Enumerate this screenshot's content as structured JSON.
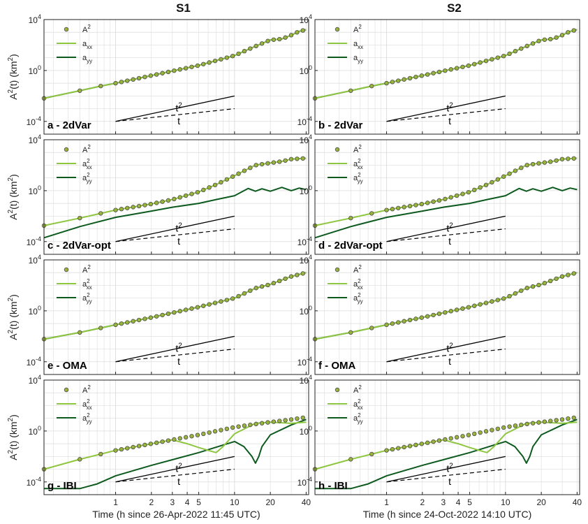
{
  "chart_data": {
    "type": "line",
    "layout": "4 rows x 2 columns of log-log panels",
    "column_titles": [
      "S1",
      "S2"
    ],
    "ylabel_main": "A",
    "ylabel_sup": "2",
    "ylabel_rest": "(t)  (km",
    "ylabel_unit_sup": "2",
    "ylabel_close": ")",
    "xlabels": [
      "Time (h since 26-Apr-2022 11:45 UTC)",
      "Time (h since 24-Oct-2022 14:10 UTC)"
    ],
    "x_scale": "log",
    "y_scale": "log",
    "xlim": [
      0.25,
      42
    ],
    "ylim": [
      1e-05,
      10000
    ],
    "x_ticks": [
      1,
      2,
      3,
      4,
      5,
      10,
      20,
      40
    ],
    "x_tick_labels": [
      "1",
      "2",
      "3",
      "4",
      "5",
      "10",
      "20",
      "40"
    ],
    "y_ticks": [
      0.0001,
      1,
      10000
    ],
    "y_tick_labels": [
      {
        "base": "10",
        "exp": "-4"
      },
      {
        "base": "10",
        "exp": "0"
      },
      {
        "base": "10",
        "exp": "4"
      }
    ],
    "grid": true,
    "legend_placement": "top-left",
    "legend": {
      "A2": {
        "base": "A",
        "sup": "2"
      },
      "axx": {
        "base": "a",
        "sub": "xx"
      },
      "ayy": {
        "base": "a",
        "sub": "yy"
      },
      "axx2": {
        "base": "a",
        "sup": "2",
        "sub": "xx"
      },
      "ayy2": {
        "base": "a",
        "sup": "2",
        "sub": "yy"
      }
    },
    "reference_lines": {
      "x": [
        1,
        10
      ],
      "t2": {
        "label": "t",
        "label_sup": "2",
        "y_at_1": 0.0001,
        "slope": 2,
        "style": "solid"
      },
      "t": {
        "label": "t",
        "y_at_1": 0.0001,
        "slope": 1,
        "style": "dashed"
      }
    },
    "colors": {
      "marker_fill": "#9ab33a",
      "marker_edge": "#4a4a4a",
      "axx": "#8ec63f",
      "ayy": "#0d5a1e",
      "ref": "#000000",
      "grid": "#dcdcdc"
    },
    "panels": [
      {
        "label": "a - 2dVar",
        "row": 0,
        "col": 0,
        "legend": [
          "A2",
          "axx",
          "ayy"
        ],
        "series": {
          "A2": {
            "x": [
              0.25,
              0.5,
              0.75,
              1,
              2,
              5,
              10,
              15,
              20,
              25,
              30,
              35,
              40
            ],
            "y": [
              0.0065,
              0.026,
              0.06,
              0.1,
              0.4,
              2.5,
              15,
              80,
              250,
              300,
              600,
              1200,
              1600
            ]
          },
          "axx": {
            "x": [
              0.25,
              0.5,
              0.75,
              1,
              2,
              5,
              10,
              15,
              20,
              25,
              30,
              35,
              40
            ],
            "y": [
              0.0065,
              0.026,
              0.06,
              0.1,
              0.4,
              2.5,
              15,
              80,
              250,
              300,
              600,
              1200,
              1600
            ]
          },
          "ayy": {
            "x": [
              0.25,
              0.5,
              0.75,
              1,
              2,
              5,
              10,
              15,
              20,
              25,
              30,
              35,
              40
            ],
            "y": [
              0.0065,
              0.026,
              0.06,
              0.1,
              0.4,
              2.5,
              15,
              80,
              250,
              300,
              600,
              1200,
              1600
            ]
          }
        }
      },
      {
        "label": "b - 2dVar",
        "row": 0,
        "col": 1,
        "legend": [
          "A2",
          "axx",
          "ayy"
        ],
        "series": {
          "A2": {
            "x": [
              0.25,
              0.5,
              0.75,
              1,
              2,
              5,
              10,
              15,
              20,
              25,
              30,
              35,
              40
            ],
            "y": [
              0.0065,
              0.026,
              0.06,
              0.1,
              0.4,
              2.5,
              15,
              80,
              250,
              300,
              600,
              1200,
              1600
            ]
          },
          "axx": {
            "x": [
              0.25,
              0.5,
              0.75,
              1,
              2,
              5,
              10,
              15,
              20,
              25,
              30,
              35,
              40
            ],
            "y": [
              0.0065,
              0.026,
              0.06,
              0.1,
              0.4,
              2.5,
              15,
              80,
              250,
              300,
              600,
              1200,
              1600
            ]
          },
          "ayy": {
            "x": [
              0.25,
              0.5,
              0.75,
              1,
              2,
              5,
              10,
              15,
              20,
              25,
              30,
              35,
              40
            ],
            "y": [
              0.0065,
              0.026,
              0.06,
              0.1,
              0.4,
              2.5,
              15,
              80,
              250,
              300,
              600,
              1200,
              1600
            ]
          }
        }
      },
      {
        "label": "c - 2dVar-opt",
        "row": 1,
        "col": 0,
        "legend": [
          "A2",
          "axx2",
          "ayy2"
        ],
        "series": {
          "A2": {
            "x": [
              0.25,
              0.5,
              1,
              2,
              3,
              5,
              7,
              10,
              15,
              20,
              25,
              30,
              40
            ],
            "y": [
              0.0018,
              0.007,
              0.03,
              0.09,
              0.2,
              0.8,
              3,
              15,
              100,
              150,
              200,
              300,
              350
            ]
          },
          "axx": {
            "x": [
              0.25,
              0.5,
              1,
              2,
              3,
              5,
              7,
              10,
              15,
              20,
              25,
              30,
              40
            ],
            "y": [
              0.0018,
              0.007,
              0.03,
              0.09,
              0.2,
              0.8,
              3,
              15,
              100,
              150,
              200,
              300,
              350
            ]
          },
          "ayy": {
            "x": [
              0.25,
              0.5,
              1,
              2,
              3,
              5,
              7,
              10,
              13,
              15,
              17,
              20,
              25,
              30,
              35,
              40
            ],
            "y": [
              0.0002,
              0.0015,
              0.008,
              0.025,
              0.05,
              0.1,
              0.2,
              0.4,
              1.5,
              0.9,
              1.4,
              0.9,
              1.8,
              1.0,
              1.6,
              1.2
            ]
          }
        }
      },
      {
        "label": "d - 2dVar-opt",
        "row": 1,
        "col": 1,
        "legend": [
          "A2",
          "axx2",
          "ayy2"
        ],
        "series": {
          "A2": {
            "x": [
              0.25,
              0.5,
              1,
              2,
              3,
              5,
              7,
              10,
              15,
              20,
              25,
              30,
              40
            ],
            "y": [
              0.0018,
              0.007,
              0.03,
              0.09,
              0.2,
              0.8,
              3,
              15,
              100,
              150,
              200,
              300,
              350
            ]
          },
          "axx": {
            "x": [
              0.25,
              0.5,
              1,
              2,
              3,
              5,
              7,
              10,
              15,
              20,
              25,
              30,
              40
            ],
            "y": [
              0.0018,
              0.007,
              0.03,
              0.09,
              0.2,
              0.8,
              3,
              15,
              100,
              150,
              200,
              300,
              350
            ]
          },
          "ayy": {
            "x": [
              0.25,
              0.5,
              1,
              2,
              3,
              5,
              7,
              10,
              13,
              15,
              17,
              20,
              25,
              30,
              35,
              40
            ],
            "y": [
              0.0002,
              0.0015,
              0.008,
              0.025,
              0.05,
              0.1,
              0.2,
              0.4,
              1.5,
              0.9,
              1.4,
              0.9,
              1.8,
              1.0,
              1.6,
              1.2
            ]
          }
        }
      },
      {
        "label": "e - OMA",
        "row": 2,
        "col": 0,
        "legend": [
          "A2",
          "axx2",
          "ayy2"
        ],
        "series": {
          "A2": {
            "x": [
              0.25,
              0.5,
              1,
              2,
              5,
              10,
              15,
              20,
              30,
              40
            ],
            "y": [
              0.006,
              0.02,
              0.08,
              0.3,
              2,
              10,
              60,
              120,
              500,
              1000
            ]
          },
          "axx": {
            "x": [
              0.25,
              0.5,
              1,
              2,
              5,
              10,
              15,
              20,
              30,
              40
            ],
            "y": [
              0.006,
              0.02,
              0.08,
              0.3,
              2,
              10,
              60,
              120,
              500,
              1000
            ]
          },
          "ayy": {
            "x": [
              0.25,
              0.5,
              1,
              2,
              5,
              10,
              15,
              20,
              30,
              40
            ],
            "y": [
              0.006,
              0.02,
              0.08,
              0.3,
              2,
              10,
              60,
              120,
              500,
              1000
            ]
          }
        }
      },
      {
        "label": "f - OMA",
        "row": 2,
        "col": 1,
        "legend": [
          "A2",
          "axx2",
          "ayy2"
        ],
        "series": {
          "A2": {
            "x": [
              0.25,
              0.5,
              1,
              2,
              5,
              10,
              15,
              20,
              30,
              40
            ],
            "y": [
              0.006,
              0.02,
              0.08,
              0.3,
              2,
              10,
              60,
              120,
              500,
              1000
            ]
          },
          "axx": {
            "x": [
              0.25,
              0.5,
              1,
              2,
              5,
              10,
              15,
              20,
              30,
              40
            ],
            "y": [
              0.006,
              0.02,
              0.08,
              0.3,
              2,
              10,
              60,
              120,
              500,
              1000
            ]
          },
          "ayy": {
            "x": [
              0.25,
              0.5,
              1,
              2,
              5,
              10,
              15,
              20,
              30,
              40
            ],
            "y": [
              0.006,
              0.02,
              0.08,
              0.3,
              2,
              10,
              60,
              120,
              500,
              1000
            ]
          }
        }
      },
      {
        "label": "g - IBI",
        "row": 3,
        "col": 0,
        "legend": [
          "A2",
          "axx2",
          "ayy2"
        ],
        "series": {
          "A2": {
            "x": [
              0.25,
              0.5,
              1,
              2,
              5,
              10,
              15,
              20,
              30,
              40
            ],
            "y": [
              0.001,
              0.006,
              0.03,
              0.1,
              0.5,
              2,
              3.5,
              5,
              8,
              12
            ]
          },
          "axx": {
            "x": [
              0.25,
              0.5,
              1,
              2,
              3,
              4,
              5,
              6,
              7,
              8,
              10,
              15,
              20,
              30,
              40
            ],
            "y": [
              0.001,
              0.006,
              0.03,
              0.1,
              0.2,
              0.1,
              0.05,
              0.03,
              0.02,
              0.06,
              0.6,
              4,
              5,
              4,
              5
            ]
          },
          "ayy": {
            "x": [
              0.25,
              0.5,
              0.7,
              1,
              2,
              5,
              10,
              12,
              14,
              15,
              16,
              17,
              20,
              30,
              40
            ],
            "y": [
              3e-05,
              3e-05,
              7e-05,
              0.0003,
              0.002,
              0.02,
              0.15,
              0.06,
              0.01,
              0.003,
              0.01,
              0.06,
              0.5,
              3,
              8
            ]
          }
        }
      },
      {
        "label": "h - IBI",
        "row": 3,
        "col": 1,
        "legend": [
          "A2",
          "axx2",
          "ayy2"
        ],
        "series": {
          "A2": {
            "x": [
              0.25,
              0.5,
              1,
              2,
              5,
              10,
              15,
              20,
              30,
              40
            ],
            "y": [
              0.001,
              0.006,
              0.03,
              0.1,
              0.5,
              2,
              3.5,
              5,
              8,
              12
            ]
          },
          "axx": {
            "x": [
              0.25,
              0.5,
              1,
              2,
              3,
              4,
              5,
              6,
              7,
              8,
              10,
              15,
              20,
              30,
              40
            ],
            "y": [
              0.001,
              0.006,
              0.03,
              0.1,
              0.2,
              0.1,
              0.05,
              0.03,
              0.02,
              0.06,
              0.6,
              4,
              5,
              4,
              5
            ]
          },
          "ayy": {
            "x": [
              0.25,
              0.5,
              0.7,
              1,
              2,
              5,
              10,
              12,
              14,
              15,
              16,
              17,
              20,
              30,
              40
            ],
            "y": [
              3e-05,
              3e-05,
              7e-05,
              0.0003,
              0.002,
              0.02,
              0.15,
              0.06,
              0.01,
              0.003,
              0.01,
              0.06,
              0.5,
              3,
              8
            ]
          }
        }
      }
    ]
  }
}
